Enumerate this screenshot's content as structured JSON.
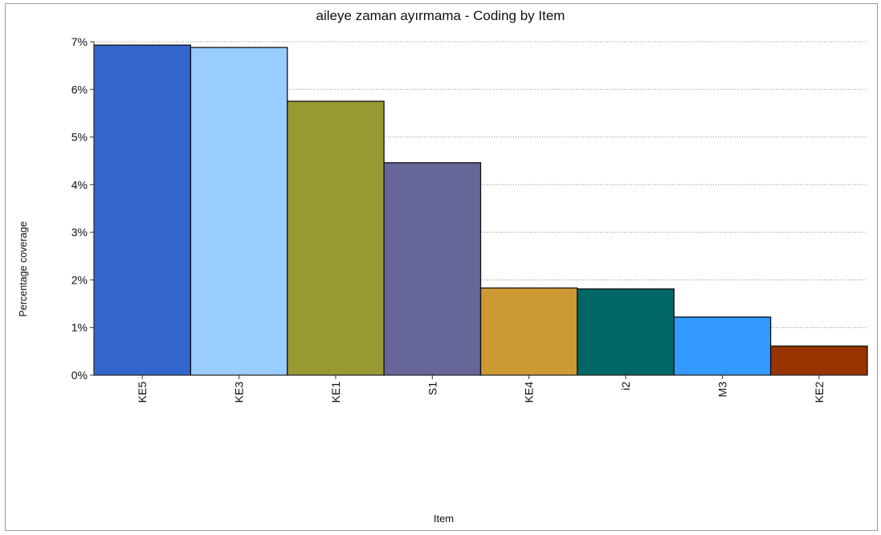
{
  "chart_data": {
    "type": "bar",
    "title": "aileye zaman ayırmama - Coding by Item",
    "xlabel": "Item",
    "ylabel": "Percentage coverage",
    "categories": [
      "KE5",
      "KE3",
      "KE1",
      "S1",
      "KE4",
      "i2",
      "M3",
      "KE2"
    ],
    "values": [
      6.93,
      6.88,
      5.75,
      4.46,
      1.83,
      1.81,
      1.22,
      0.61
    ],
    "colors": [
      "#3366cc",
      "#99ccff",
      "#999933",
      "#666699",
      "#cc9933",
      "#006666",
      "#3399ff",
      "#993300"
    ],
    "ylim": [
      0,
      7
    ],
    "yticks": [
      "0%",
      "1%",
      "2%",
      "3%",
      "4%",
      "5%",
      "6%",
      "7%"
    ],
    "grid": true,
    "grid_style": "dotted",
    "legend": "none"
  }
}
